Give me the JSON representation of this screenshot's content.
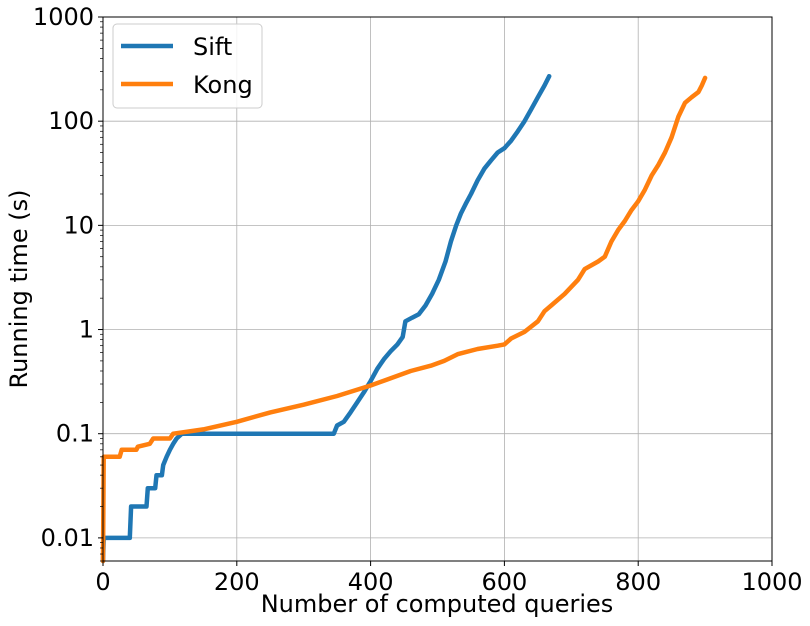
{
  "chart_data": {
    "type": "line",
    "title": "",
    "xlabel": "Number of computed queries",
    "ylabel": "Running time (s)",
    "xlim": [
      0,
      1000
    ],
    "ylim": [
      0.006,
      1000
    ],
    "yscale": "log",
    "grid": true,
    "legend_position": "top-left",
    "x_ticks": [
      0,
      200,
      400,
      600,
      800,
      1000
    ],
    "y_ticks": [
      0.01,
      0.1,
      1,
      10,
      100,
      1000
    ],
    "x_tick_labels": [
      "0",
      "200",
      "400",
      "600",
      "800",
      "1000"
    ],
    "y_tick_labels": [
      "0.01",
      "0.1",
      "1",
      "10",
      "100",
      "1000"
    ],
    "series": [
      {
        "name": "Sift",
        "color": "#1f77b4",
        "points": [
          [
            0,
            0.006
          ],
          [
            1,
            0.01
          ],
          [
            40,
            0.01
          ],
          [
            42,
            0.02
          ],
          [
            65,
            0.02
          ],
          [
            67,
            0.03
          ],
          [
            78,
            0.03
          ],
          [
            80,
            0.04
          ],
          [
            88,
            0.04
          ],
          [
            90,
            0.05
          ],
          [
            95,
            0.06
          ],
          [
            100,
            0.07
          ],
          [
            105,
            0.08
          ],
          [
            110,
            0.09
          ],
          [
            118,
            0.1
          ],
          [
            345,
            0.1
          ],
          [
            350,
            0.12
          ],
          [
            360,
            0.13
          ],
          [
            370,
            0.16
          ],
          [
            380,
            0.2
          ],
          [
            390,
            0.25
          ],
          [
            400,
            0.32
          ],
          [
            410,
            0.42
          ],
          [
            420,
            0.52
          ],
          [
            430,
            0.62
          ],
          [
            440,
            0.72
          ],
          [
            448,
            0.85
          ],
          [
            452,
            1.2
          ],
          [
            462,
            1.3
          ],
          [
            472,
            1.4
          ],
          [
            482,
            1.7
          ],
          [
            492,
            2.2
          ],
          [
            502,
            3.0
          ],
          [
            512,
            4.5
          ],
          [
            520,
            7.0
          ],
          [
            528,
            10.0
          ],
          [
            535,
            13.0
          ],
          [
            542,
            16.0
          ],
          [
            550,
            20.0
          ],
          [
            560,
            27.0
          ],
          [
            570,
            35.0
          ],
          [
            580,
            42.0
          ],
          [
            590,
            50.0
          ],
          [
            600,
            55.0
          ],
          [
            610,
            65.0
          ],
          [
            620,
            80.0
          ],
          [
            630,
            100.0
          ],
          [
            640,
            130.0
          ],
          [
            650,
            170.0
          ],
          [
            660,
            220.0
          ],
          [
            667,
            270.0
          ]
        ]
      },
      {
        "name": "Kong",
        "color": "#ff7f0e",
        "points": [
          [
            0,
            0.006
          ],
          [
            1,
            0.06
          ],
          [
            25,
            0.06
          ],
          [
            28,
            0.07
          ],
          [
            50,
            0.07
          ],
          [
            52,
            0.075
          ],
          [
            70,
            0.08
          ],
          [
            75,
            0.09
          ],
          [
            100,
            0.09
          ],
          [
            105,
            0.1
          ],
          [
            150,
            0.11
          ],
          [
            200,
            0.13
          ],
          [
            250,
            0.16
          ],
          [
            300,
            0.19
          ],
          [
            350,
            0.23
          ],
          [
            400,
            0.29
          ],
          [
            430,
            0.34
          ],
          [
            460,
            0.4
          ],
          [
            490,
            0.45
          ],
          [
            510,
            0.5
          ],
          [
            530,
            0.58
          ],
          [
            560,
            0.65
          ],
          [
            590,
            0.7
          ],
          [
            600,
            0.72
          ],
          [
            610,
            0.82
          ],
          [
            630,
            0.95
          ],
          [
            650,
            1.2
          ],
          [
            660,
            1.5
          ],
          [
            670,
            1.7
          ],
          [
            690,
            2.2
          ],
          [
            710,
            3.0
          ],
          [
            720,
            3.8
          ],
          [
            740,
            4.5
          ],
          [
            750,
            5.0
          ],
          [
            760,
            7.0
          ],
          [
            770,
            9.0
          ],
          [
            780,
            11.0
          ],
          [
            790,
            14.0
          ],
          [
            800,
            17.0
          ],
          [
            810,
            22.0
          ],
          [
            820,
            30.0
          ],
          [
            830,
            38.0
          ],
          [
            840,
            50.0
          ],
          [
            850,
            70.0
          ],
          [
            860,
            110.0
          ],
          [
            870,
            150.0
          ],
          [
            880,
            170.0
          ],
          [
            890,
            190.0
          ],
          [
            895,
            220.0
          ],
          [
            900,
            260.0
          ]
        ]
      }
    ]
  }
}
